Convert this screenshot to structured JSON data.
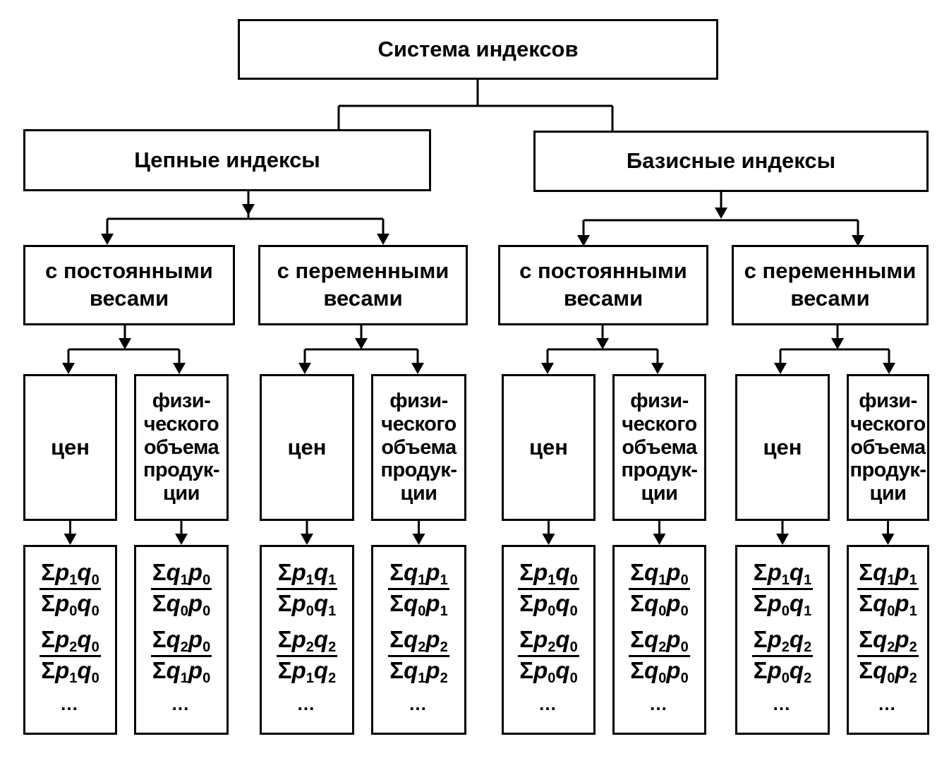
{
  "title": "Система индексов",
  "branches": [
    {
      "label": "Цепные индексы",
      "groups": [
        {
          "label": "с постоянными весами",
          "lines": [
            "с постоянными",
            "весами"
          ],
          "leaves": [
            {
              "label": "цен",
              "formulas": [
                {
                  "num": "p1q0",
                  "den": "p0q0"
                },
                {
                  "num": "p2q0",
                  "den": "p1q0"
                }
              ]
            },
            {
              "lines": [
                "физи-",
                "ческого",
                "объема",
                "продук-",
                "ции"
              ],
              "formulas": [
                {
                  "num": "q1p0",
                  "den": "q0p0"
                },
                {
                  "num": "q2p0",
                  "den": "q1p0"
                }
              ]
            }
          ]
        },
        {
          "label": "с переменными весами",
          "lines": [
            "с переменными",
            "весами"
          ],
          "leaves": [
            {
              "label": "цен",
              "formulas": [
                {
                  "num": "p1q1",
                  "den": "p0q1"
                },
                {
                  "num": "p2q2",
                  "den": "p1q2"
                }
              ]
            },
            {
              "lines": [
                "физи-",
                "ческого",
                "объема",
                "продук-",
                "ции"
              ],
              "formulas": [
                {
                  "num": "q1p1",
                  "den": "q0p1"
                },
                {
                  "num": "q2p2",
                  "den": "q1p2"
                }
              ]
            }
          ]
        }
      ]
    },
    {
      "label": "Базисные индексы",
      "groups": [
        {
          "label": "с постоянными весами",
          "lines": [
            "с постоянными",
            "весами"
          ],
          "leaves": [
            {
              "label": "цен",
              "formulas": [
                {
                  "num": "p1q0",
                  "den": "p0q0"
                },
                {
                  "num": "p2q0",
                  "den": "p0q0"
                }
              ]
            },
            {
              "lines": [
                "физи-",
                "ческого",
                "объема",
                "продук-",
                "ции"
              ],
              "formulas": [
                {
                  "num": "q1p0",
                  "den": "q0p0"
                },
                {
                  "num": "q2p0",
                  "den": "q0p0"
                }
              ]
            }
          ]
        },
        {
          "label": "с переменными весами",
          "lines": [
            "с переменными",
            "весами"
          ],
          "leaves": [
            {
              "label": "цен",
              "formulas": [
                {
                  "num": "p1q1",
                  "den": "p0q1"
                },
                {
                  "num": "p2q2",
                  "den": "p0q2"
                }
              ]
            },
            {
              "lines": [
                "физи-",
                "ческого",
                "объема",
                "продук-",
                "ции"
              ],
              "formulas": [
                {
                  "num": "q1p1",
                  "den": "q0p1"
                },
                {
                  "num": "q2p2",
                  "den": "q0p2"
                }
              ]
            }
          ]
        }
      ]
    }
  ],
  "sum_symbol": "Σ",
  "ellipsis": "…"
}
